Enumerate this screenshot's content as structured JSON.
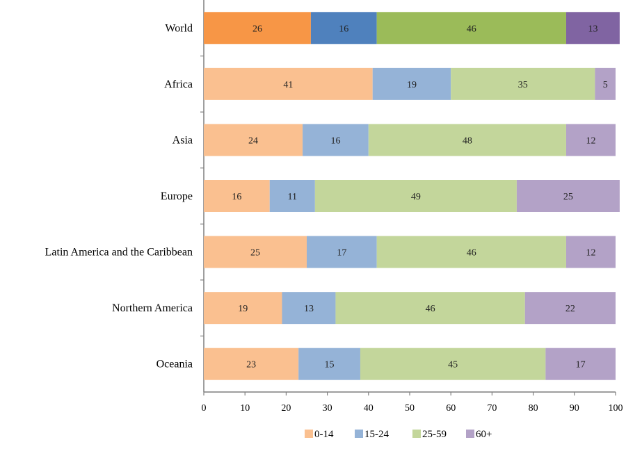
{
  "chart_data": {
    "type": "bar",
    "orientation": "horizontal",
    "stacked": true,
    "categories": [
      "World",
      "Africa",
      "Asia",
      "Europe",
      "Latin America and the Caribbean",
      "Northern America",
      "Oceania"
    ],
    "series": [
      {
        "name": "0-14",
        "values": [
          26,
          41,
          24,
          16,
          25,
          19,
          23
        ],
        "color": "#fac090",
        "highlight_color": "#f79646"
      },
      {
        "name": "15-24",
        "values": [
          16,
          19,
          16,
          11,
          17,
          13,
          15
        ],
        "color": "#95b3d7",
        "highlight_color": "#4f81bd"
      },
      {
        "name": "25-59",
        "values": [
          46,
          35,
          48,
          49,
          46,
          46,
          45
        ],
        "color": "#c3d69b",
        "highlight_color": "#9bbb59"
      },
      {
        "name": "60+",
        "values": [
          13,
          5,
          12,
          25,
          12,
          22,
          17
        ],
        "color": "#b3a2c7",
        "highlight_color": "#8064a2"
      }
    ],
    "highlighted_category": "World",
    "xlim": [
      0,
      100
    ],
    "xticks": [
      0,
      10,
      20,
      30,
      40,
      50,
      60,
      70,
      80,
      90,
      100
    ],
    "grid": false,
    "legend_position": "bottom"
  }
}
